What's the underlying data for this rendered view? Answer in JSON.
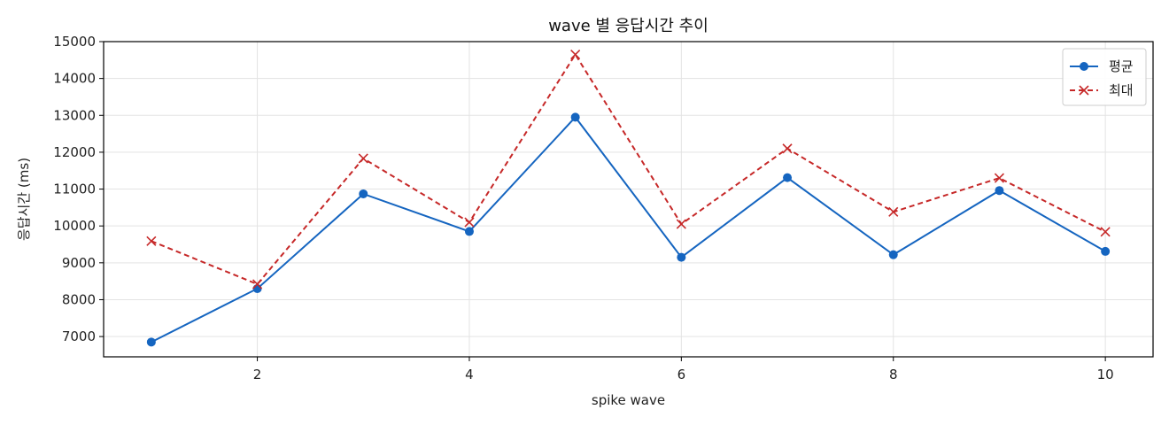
{
  "chart_data": {
    "type": "line",
    "title": "wave 별 응답시간 추이",
    "xlabel": "spike wave",
    "ylabel": "응답시간 (ms)",
    "x": [
      1,
      2,
      3,
      4,
      5,
      6,
      7,
      8,
      9,
      10
    ],
    "xlim": [
      0.55,
      10.45
    ],
    "ylim": [
      6450,
      15000
    ],
    "xticks": [
      2,
      4,
      6,
      8,
      10
    ],
    "yticks": [
      7000,
      8000,
      9000,
      10000,
      11000,
      12000,
      13000,
      14000,
      15000
    ],
    "grid": true,
    "legend_position": "top-right",
    "series": [
      {
        "name": "평균",
        "values": [
          6850,
          8300,
          10870,
          9850,
          12950,
          9150,
          11310,
          9220,
          10960,
          9310
        ],
        "color": "#1565c0",
        "style": "solid",
        "marker": "circle"
      },
      {
        "name": "최대",
        "values": [
          9590,
          8420,
          11830,
          10100,
          14650,
          10050,
          12100,
          10380,
          11300,
          9840
        ],
        "color": "#c62828",
        "style": "dashed",
        "marker": "x"
      }
    ]
  }
}
